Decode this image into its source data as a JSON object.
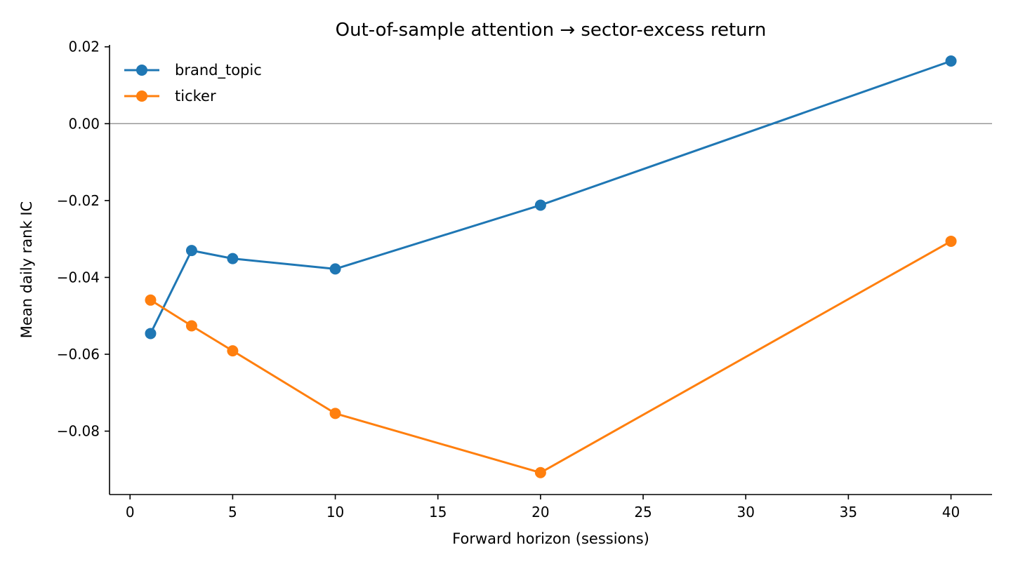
{
  "chart_data": {
    "type": "line",
    "title": "Out-of-sample attention → sector-excess return",
    "xlabel": "Forward horizon (sessions)",
    "ylabel": "Mean daily rank IC",
    "xlim": [
      -1,
      42
    ],
    "ylim": [
      -0.0965,
      0.0205
    ],
    "xticks": [
      0,
      5,
      10,
      15,
      20,
      25,
      30,
      35,
      40
    ],
    "xtick_labels": [
      "0",
      "5",
      "10",
      "15",
      "20",
      "25",
      "30",
      "35",
      "40"
    ],
    "yticks": [
      0.02,
      0.0,
      -0.02,
      -0.04,
      -0.06,
      -0.08
    ],
    "ytick_labels": [
      "0.02",
      "0.00",
      "−0.02",
      "−0.04",
      "−0.06",
      "−0.08"
    ],
    "reference_line": {
      "y": 0.0,
      "color": "#999999"
    },
    "grid": false,
    "legend": {
      "position": "top-left",
      "frame": false
    },
    "x": [
      1,
      3,
      5,
      10,
      20,
      40
    ],
    "series": [
      {
        "name": "brand_topic",
        "color": "#1f77b4",
        "values": [
          -0.0546,
          -0.033,
          -0.0351,
          -0.0378,
          -0.0212,
          0.0163
        ]
      },
      {
        "name": "ticker",
        "color": "#ff7f0e",
        "values": [
          -0.0459,
          -0.0526,
          -0.0591,
          -0.0754,
          -0.0908,
          -0.0306
        ]
      }
    ]
  }
}
